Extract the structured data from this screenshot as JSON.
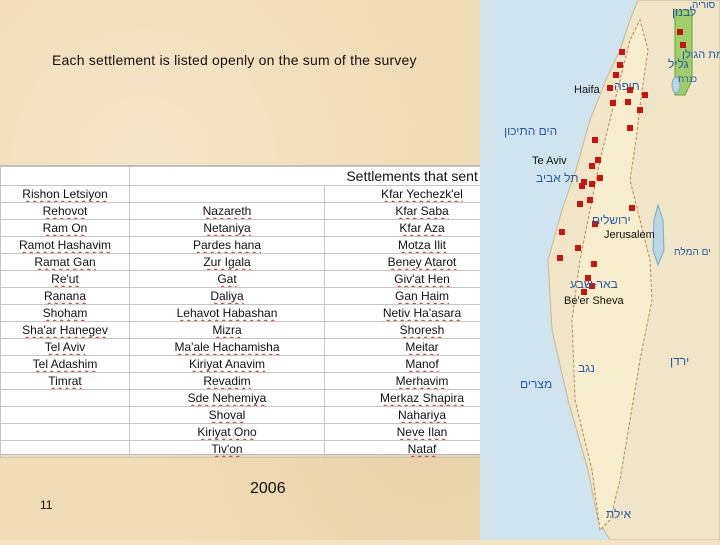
{
  "slide": {
    "heading": "Each settlement is listed openly on the sum of the survey",
    "year": "2006",
    "page_number": "11"
  },
  "table": {
    "title": "Settlements that sent data",
    "rows": [
      [
        "Rishon Letsiyon",
        "",
        "Kfar Yechezk'el"
      ],
      [
        "Rehovot",
        "Nazareth",
        "Kfar Saba"
      ],
      [
        "Ram On",
        "Netaniya",
        "Kfar Aza"
      ],
      [
        "Ramot Hashavim",
        "Pardes hana",
        "Motza Ilit"
      ],
      [
        "Ramat Gan",
        "Zur Igala",
        "Beney Atarot"
      ],
      [
        "Re'ut",
        "Gat",
        "Giv'at Hen"
      ],
      [
        "Ranana",
        "Daliya",
        "Gan Haim"
      ],
      [
        "Shoham",
        "Lehavot Habashan",
        "Netiv Ha'asara"
      ],
      [
        "Sha'ar Hanegev",
        "Mizra",
        "Shoresh"
      ],
      [
        "Tel Aviv",
        "Ma'ale Hachamisha",
        "Meitar"
      ],
      [
        "Tel Adashim",
        "Kiriyat Anavim",
        "Manof"
      ],
      [
        "Timrat",
        "Revadim",
        "Merhavim"
      ],
      [
        "",
        "Sde Nehemiya",
        "Merkaz Shapira"
      ],
      [
        "",
        "Shoval",
        "Nahariya"
      ],
      [
        "",
        "Kiriyat Ono",
        "Neve Ilan"
      ],
      [
        "",
        "Tiv'on",
        "Nataf"
      ]
    ]
  },
  "map": {
    "labels": {
      "haifa": "Haifa",
      "tel_aviv": "Te Aviv",
      "jerusalem": "Jerusalem",
      "beer_sheva": "Be'er Sheva"
    },
    "hebrew_labels": {
      "lebanon": "לבנון",
      "syria": "סוריה",
      "galilee": "גליל",
      "golan": "רמת הגולן",
      "kinneret": "כנרת",
      "haifa": "חיפה",
      "mediterranean": "הים התיכון",
      "tel_aviv": "תל אביב",
      "jerusalem": "ירושלים",
      "dead_sea": "ים המלח",
      "beer_sheva": "באר-שבע",
      "negev": "נגב",
      "jordan": "ירדן",
      "egypt": "מצרים",
      "eilat": "אילת"
    },
    "colors": {
      "sea": "#cfe4ee",
      "land": "#f0e6c7",
      "golan": "#9fcf6a",
      "marker": "#cc1111",
      "hebrew_text": "#2a58a8"
    },
    "marker_count": 30
  }
}
